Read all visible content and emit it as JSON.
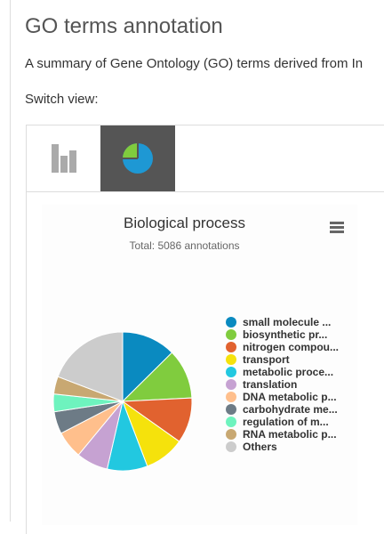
{
  "header": {
    "title": "GO terms annotation",
    "summary": "A summary of Gene Ontology (GO) terms derived from In",
    "switch_label": "Switch view:"
  },
  "view_switch": [
    {
      "name": "bar-chart-view",
      "icon": "bar-chart-icon",
      "active": false
    },
    {
      "name": "pie-chart-view",
      "icon": "pie-chart-icon",
      "active": true
    }
  ],
  "chart_data": {
    "type": "pie",
    "title": "Biological process",
    "subtitle": "Total: 5086 annotations",
    "menu_icon": "hamburger-menu-icon",
    "legend_position": "right",
    "slices": [
      {
        "label": "small molecule ...",
        "value": 12.6,
        "color": "#0a8ac0"
      },
      {
        "label": "biosynthetic pr...",
        "value": 11.6,
        "color": "#80cc3e"
      },
      {
        "label": "nitrogen compou...",
        "value": 10.6,
        "color": "#e1622f"
      },
      {
        "label": "transport",
        "value": 9.4,
        "color": "#f5e20c"
      },
      {
        "label": "metabolic proce...",
        "value": 9.4,
        "color": "#22c8e0"
      },
      {
        "label": "translation",
        "value": 7.4,
        "color": "#c6a2d2"
      },
      {
        "label": "DNA metabolic p...",
        "value": 6.4,
        "color": "#ffbf8c"
      },
      {
        "label": "carbohydrate me...",
        "value": 5.2,
        "color": "#6d7b86"
      },
      {
        "label": "regulation of m...",
        "value": 4.1,
        "color": "#6ef3be"
      },
      {
        "label": "RNA metabolic p...",
        "value": 4.1,
        "color": "#c8a872"
      },
      {
        "label": "Others",
        "value": 19.2,
        "color": "#cccccc"
      }
    ]
  }
}
